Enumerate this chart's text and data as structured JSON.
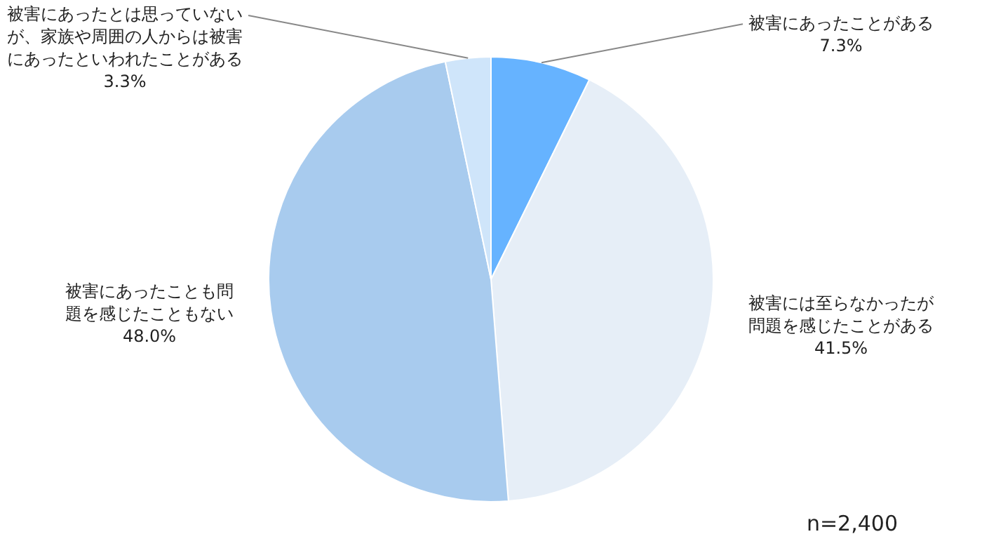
{
  "chart_data": {
    "type": "pie",
    "categories": [
      "被害にあったことがある",
      "被害には至らなかったが問題を感じたことがある",
      "被害にあったことも問題を感じたこともない",
      "被害にあったとは思っていないが、家族や周囲の人からは被害にあったといわれたことがある"
    ],
    "values": [
      7.3,
      41.5,
      48.0,
      3.3
    ],
    "value_labels": [
      "7.3%",
      "41.5%",
      "48.0%",
      "3.3%"
    ],
    "colors": [
      "#66b3ff",
      "#e6eef7",
      "#a8cbee",
      "#cfe5fa"
    ],
    "legend": false,
    "annotations": [
      "n=2,400"
    ]
  }
}
